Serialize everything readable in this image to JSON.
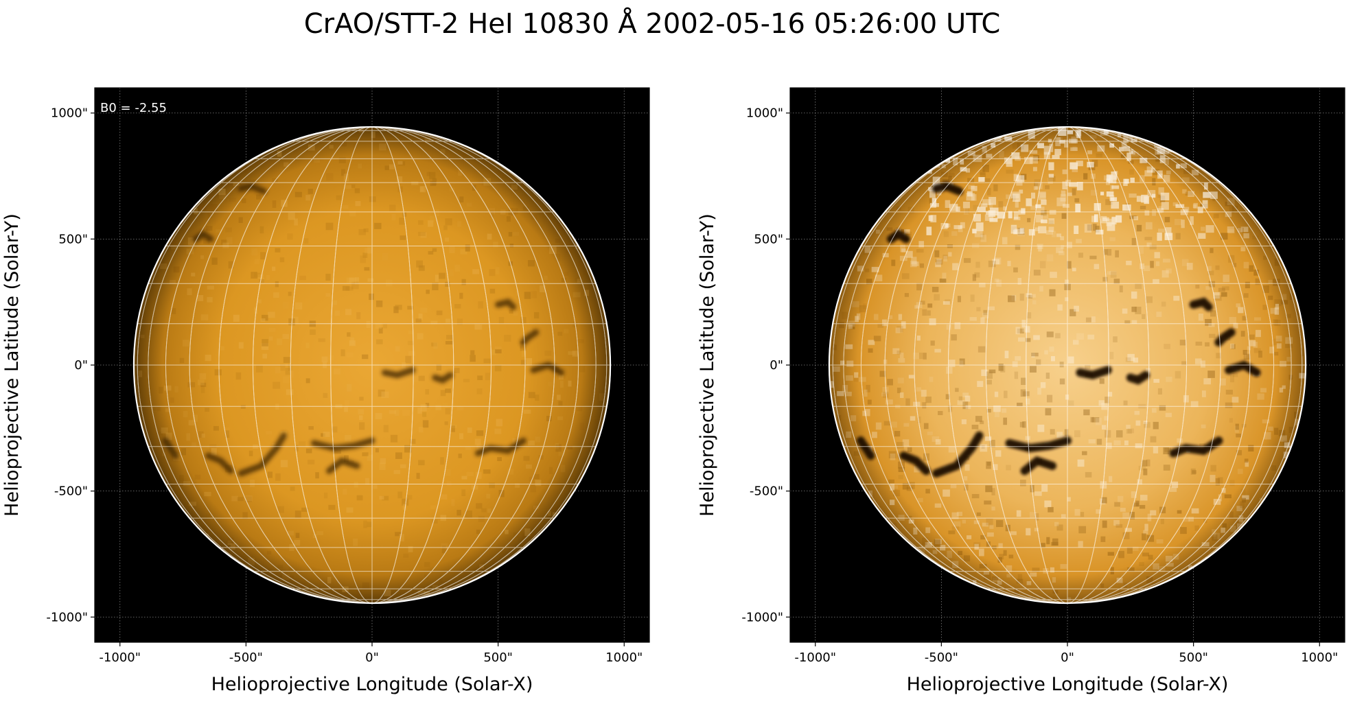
{
  "title": "CrAO/STT-2 HeI 10830 Å 2002-05-16 05:26:00 UTC",
  "colors": {
    "background": "#000000",
    "disk": "#e29a1c",
    "limb": "#ffffff",
    "grid": "#ffffff"
  },
  "panels": [
    {
      "id": "left",
      "annotation": "B0 = -2.55",
      "xlabel": "Helioprojective Longitude (Solar-X)",
      "ylabel": "Helioprojective Latitude (Solar-Y)",
      "xticks": [
        "-1000\"",
        "-500\"",
        "0\"",
        "500\"",
        "1000\""
      ],
      "yticks": [
        "1000\"",
        "500\"",
        "0\"",
        "-500\"",
        "-1000\""
      ],
      "tick_values": [
        -1000,
        -500,
        0,
        500,
        1000
      ],
      "xlim": [
        -1100,
        1100
      ],
      "ylim": [
        -1100,
        1100
      ],
      "solar_radius_arcsec": 945,
      "b0_deg": -2.55,
      "contrast": "normal"
    },
    {
      "id": "right",
      "annotation": "",
      "xlabel": "Helioprojective Longitude (Solar-X)",
      "ylabel": "Helioprojective Latitude (Solar-Y)",
      "xticks": [
        "-1000\"",
        "-500\"",
        "0\"",
        "500\"",
        "1000\""
      ],
      "yticks": [
        "1000\"",
        "500\"",
        "0\"",
        "-500\"",
        "-1000\""
      ],
      "tick_values": [
        -1000,
        -500,
        0,
        500,
        1000
      ],
      "xlim": [
        -1100,
        1100
      ],
      "ylim": [
        -1100,
        1100
      ],
      "solar_radius_arcsec": 945,
      "b0_deg": -2.55,
      "contrast": "enhanced"
    }
  ]
}
